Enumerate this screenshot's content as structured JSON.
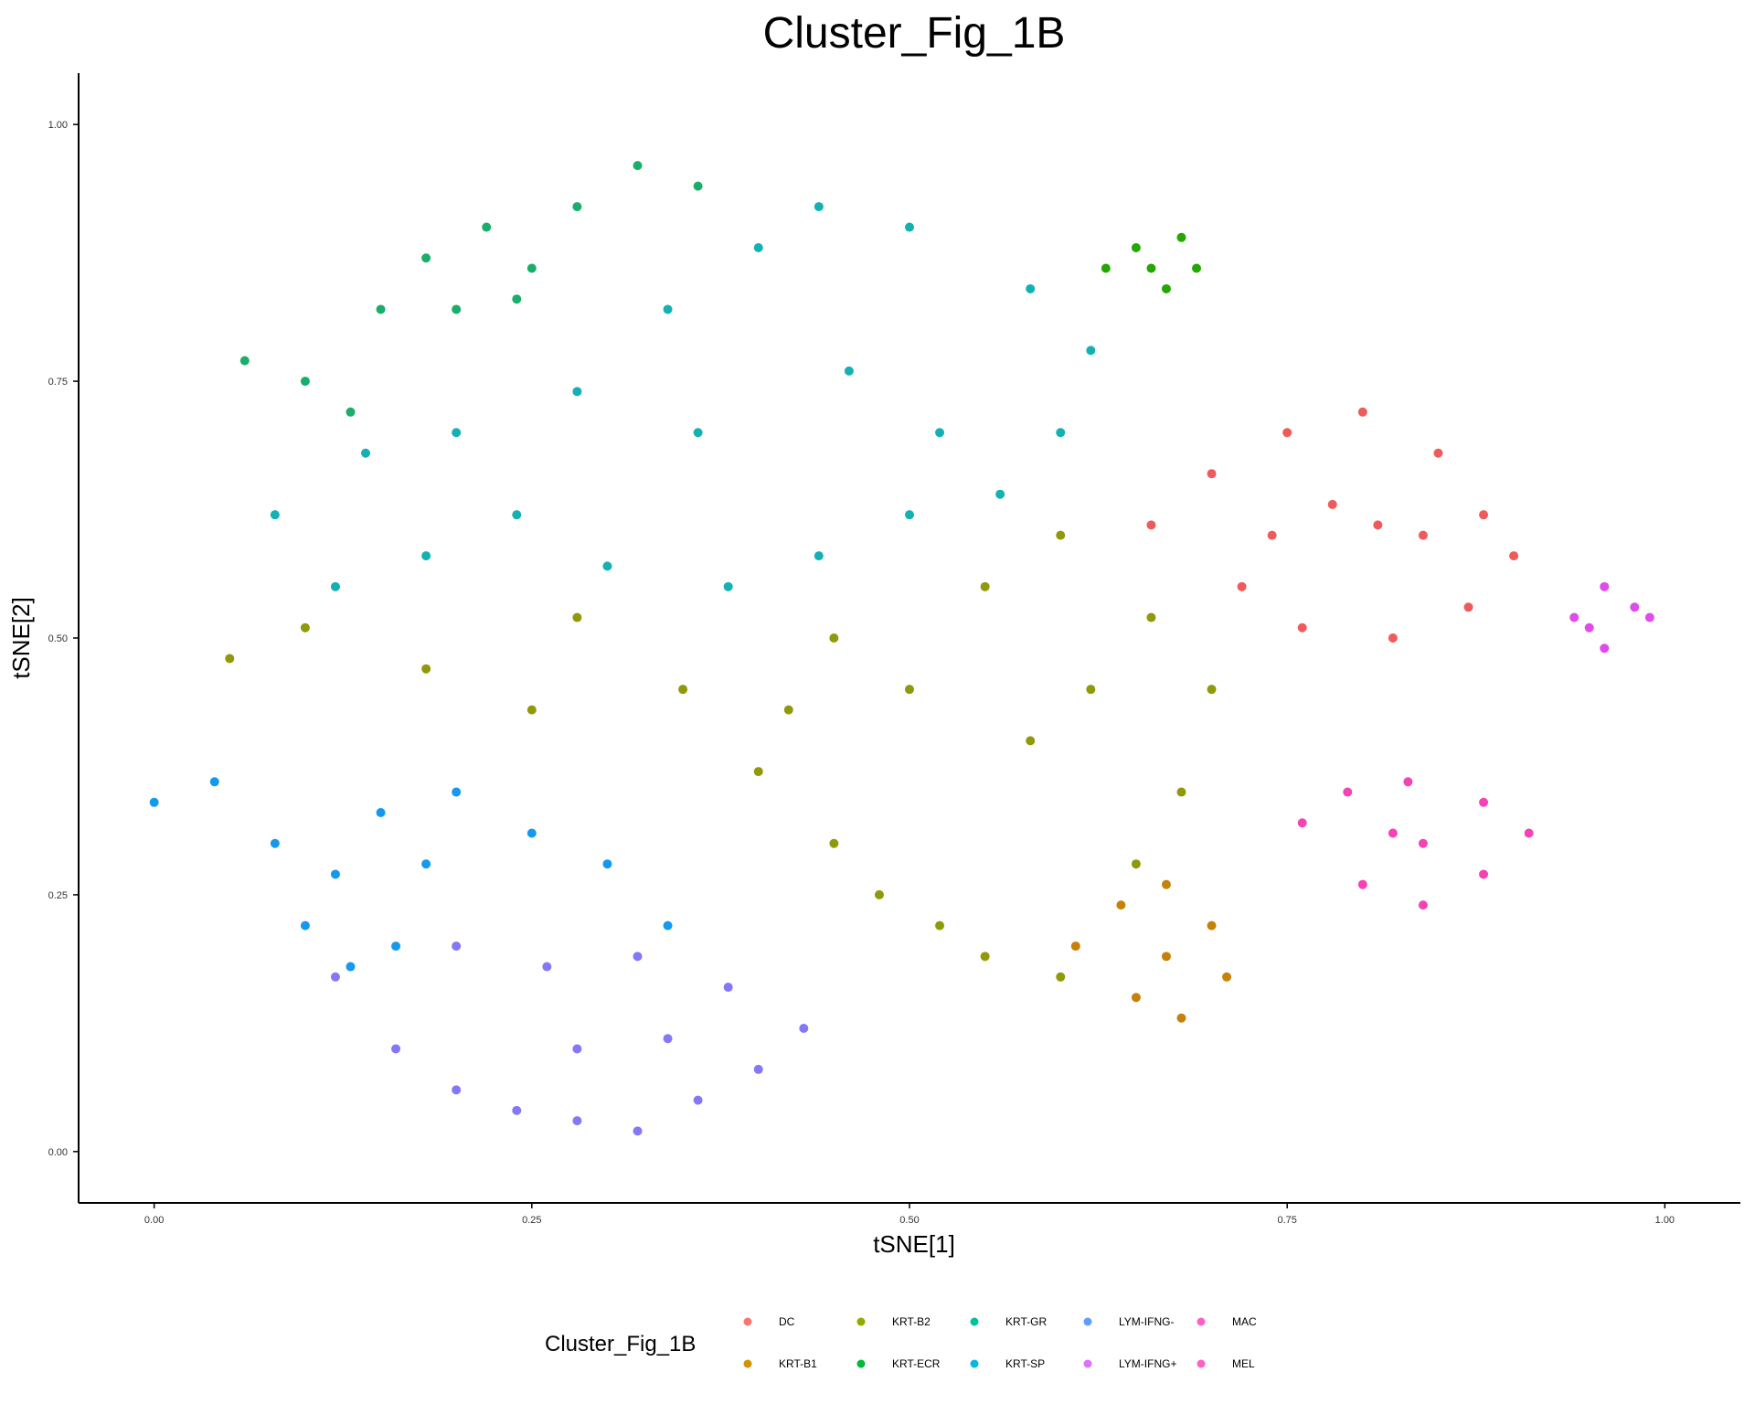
{
  "chart_data": {
    "type": "scatter",
    "title": "Cluster_Fig_1B",
    "xlabel": "tSNE[1]",
    "ylabel": "tSNE[2]",
    "xlim": [
      -0.05,
      1.05
    ],
    "ylim": [
      -0.05,
      1.05
    ],
    "x_ticks": [
      0.0,
      0.25,
      0.5,
      0.75,
      1.0
    ],
    "x_tick_labels": [
      "0.00",
      "0.25",
      "0.50",
      "0.75",
      "1.00"
    ],
    "y_ticks": [
      0.0,
      0.25,
      0.5,
      0.75,
      1.0
    ],
    "y_tick_labels": [
      "0.00",
      "0.25",
      "0.50",
      "0.75",
      "1.00"
    ],
    "grid": false,
    "legend": {
      "title": "Cluster_Fig_1B",
      "placement": "bottom",
      "entries": [
        {
          "name": "DC",
          "color": "#F8766D"
        },
        {
          "name": "KRT-B1",
          "color": "#D39200"
        },
        {
          "name": "KRT-B2",
          "color": "#93AA00"
        },
        {
          "name": "KRT-ECR",
          "color": "#00BA38"
        },
        {
          "name": "KRT-GR",
          "color": "#00C19F"
        },
        {
          "name": "KRT-SP",
          "color": "#00B9E3"
        },
        {
          "name": "LYM-IFNG-",
          "color": "#619CFF"
        },
        {
          "name": "LYM-IFNG+",
          "color": "#DB72FB"
        },
        {
          "name": "MAC",
          "color": "#FF61C3"
        },
        {
          "name": "MEL",
          "color": "#FF61C3"
        }
      ]
    },
    "series": [
      {
        "name": "DC",
        "color": "#F05A5A",
        "centroid": [
          0.81,
          0.62
        ],
        "points": [
          [
            0.66,
            0.61
          ],
          [
            0.7,
            0.66
          ],
          [
            0.75,
            0.7
          ],
          [
            0.8,
            0.72
          ],
          [
            0.85,
            0.68
          ],
          [
            0.88,
            0.62
          ],
          [
            0.9,
            0.58
          ],
          [
            0.87,
            0.53
          ],
          [
            0.82,
            0.5
          ],
          [
            0.76,
            0.51
          ],
          [
            0.72,
            0.55
          ],
          [
            0.81,
            0.61
          ],
          [
            0.78,
            0.63
          ],
          [
            0.84,
            0.6
          ],
          [
            0.74,
            0.6
          ]
        ]
      },
      {
        "name": "KRT-B1",
        "color": "#C7800A",
        "centroid": [
          0.67,
          0.19
        ],
        "points": [
          [
            0.61,
            0.2
          ],
          [
            0.64,
            0.24
          ],
          [
            0.67,
            0.26
          ],
          [
            0.7,
            0.22
          ],
          [
            0.71,
            0.17
          ],
          [
            0.68,
            0.13
          ],
          [
            0.65,
            0.15
          ],
          [
            0.67,
            0.19
          ]
        ]
      },
      {
        "name": "KRT-B2",
        "color": "#8F990A",
        "centroid": [
          0.5,
          0.4
        ],
        "points": [
          [
            0.05,
            0.48
          ],
          [
            0.1,
            0.51
          ],
          [
            0.18,
            0.47
          ],
          [
            0.25,
            0.43
          ],
          [
            0.28,
            0.52
          ],
          [
            0.35,
            0.45
          ],
          [
            0.4,
            0.37
          ],
          [
            0.45,
            0.3
          ],
          [
            0.48,
            0.25
          ],
          [
            0.52,
            0.22
          ],
          [
            0.55,
            0.19
          ],
          [
            0.6,
            0.17
          ],
          [
            0.65,
            0.28
          ],
          [
            0.68,
            0.35
          ],
          [
            0.7,
            0.45
          ],
          [
            0.66,
            0.52
          ],
          [
            0.6,
            0.6
          ],
          [
            0.55,
            0.55
          ],
          [
            0.5,
            0.45
          ],
          [
            0.45,
            0.5
          ],
          [
            0.58,
            0.4
          ],
          [
            0.62,
            0.45
          ],
          [
            0.42,
            0.43
          ]
        ]
      },
      {
        "name": "KRT-ECR",
        "color": "#22A800",
        "centroid": [
          0.67,
          0.86
        ],
        "points": [
          [
            0.63,
            0.86
          ],
          [
            0.65,
            0.88
          ],
          [
            0.68,
            0.89
          ],
          [
            0.69,
            0.86
          ],
          [
            0.67,
            0.84
          ],
          [
            0.66,
            0.86
          ]
        ]
      },
      {
        "name": "KRT-GR",
        "color": "#19AE6A",
        "centroid": [
          0.22,
          0.85
        ],
        "points": [
          [
            0.06,
            0.77
          ],
          [
            0.1,
            0.75
          ],
          [
            0.13,
            0.72
          ],
          [
            0.15,
            0.82
          ],
          [
            0.18,
            0.87
          ],
          [
            0.22,
            0.9
          ],
          [
            0.25,
            0.86
          ],
          [
            0.28,
            0.92
          ],
          [
            0.32,
            0.96
          ],
          [
            0.36,
            0.94
          ],
          [
            0.2,
            0.82
          ],
          [
            0.24,
            0.83
          ]
        ]
      },
      {
        "name": "KRT-SP",
        "color": "#14B1B3",
        "centroid": [
          0.38,
          0.68
        ],
        "points": [
          [
            0.08,
            0.62
          ],
          [
            0.12,
            0.55
          ],
          [
            0.18,
            0.58
          ],
          [
            0.24,
            0.62
          ],
          [
            0.3,
            0.57
          ],
          [
            0.38,
            0.55
          ],
          [
            0.44,
            0.58
          ],
          [
            0.5,
            0.62
          ],
          [
            0.56,
            0.64
          ],
          [
            0.6,
            0.7
          ],
          [
            0.62,
            0.78
          ],
          [
            0.58,
            0.84
          ],
          [
            0.5,
            0.9
          ],
          [
            0.44,
            0.92
          ],
          [
            0.4,
            0.88
          ],
          [
            0.34,
            0.82
          ],
          [
            0.28,
            0.74
          ],
          [
            0.2,
            0.7
          ],
          [
            0.14,
            0.68
          ],
          [
            0.36,
            0.7
          ],
          [
            0.46,
            0.76
          ],
          [
            0.52,
            0.7
          ]
        ]
      },
      {
        "name": "LYM-IFNG-",
        "color": "#1599EE",
        "centroid": [
          0.14,
          0.28
        ],
        "points": [
          [
            0.0,
            0.34
          ],
          [
            0.04,
            0.36
          ],
          [
            0.08,
            0.3
          ],
          [
            0.1,
            0.22
          ],
          [
            0.13,
            0.18
          ],
          [
            0.16,
            0.2
          ],
          [
            0.18,
            0.28
          ],
          [
            0.15,
            0.33
          ],
          [
            0.2,
            0.35
          ],
          [
            0.25,
            0.31
          ],
          [
            0.3,
            0.28
          ],
          [
            0.34,
            0.22
          ],
          [
            0.12,
            0.27
          ]
        ]
      },
      {
        "name": "LYM-IFNG+",
        "color": "#8477F8",
        "centroid": [
          0.28,
          0.1
        ],
        "points": [
          [
            0.12,
            0.17
          ],
          [
            0.16,
            0.1
          ],
          [
            0.2,
            0.06
          ],
          [
            0.24,
            0.04
          ],
          [
            0.28,
            0.03
          ],
          [
            0.32,
            0.02
          ],
          [
            0.36,
            0.05
          ],
          [
            0.4,
            0.08
          ],
          [
            0.43,
            0.12
          ],
          [
            0.38,
            0.16
          ],
          [
            0.32,
            0.19
          ],
          [
            0.26,
            0.18
          ],
          [
            0.2,
            0.2
          ],
          [
            0.28,
            0.1
          ],
          [
            0.34,
            0.11
          ]
        ]
      },
      {
        "name": "MAC",
        "color": "#E04BEB",
        "centroid": [
          0.96,
          0.52
        ],
        "points": [
          [
            0.94,
            0.52
          ],
          [
            0.96,
            0.55
          ],
          [
            0.98,
            0.53
          ],
          [
            0.99,
            0.52
          ],
          [
            0.96,
            0.49
          ],
          [
            0.95,
            0.51
          ]
        ]
      },
      {
        "name": "MEL",
        "color": "#F542B4",
        "centroid": [
          0.84,
          0.3
        ],
        "points": [
          [
            0.76,
            0.32
          ],
          [
            0.79,
            0.35
          ],
          [
            0.83,
            0.36
          ],
          [
            0.88,
            0.34
          ],
          [
            0.91,
            0.31
          ],
          [
            0.88,
            0.27
          ],
          [
            0.84,
            0.24
          ],
          [
            0.8,
            0.26
          ],
          [
            0.84,
            0.3
          ],
          [
            0.82,
            0.31
          ]
        ]
      }
    ]
  }
}
